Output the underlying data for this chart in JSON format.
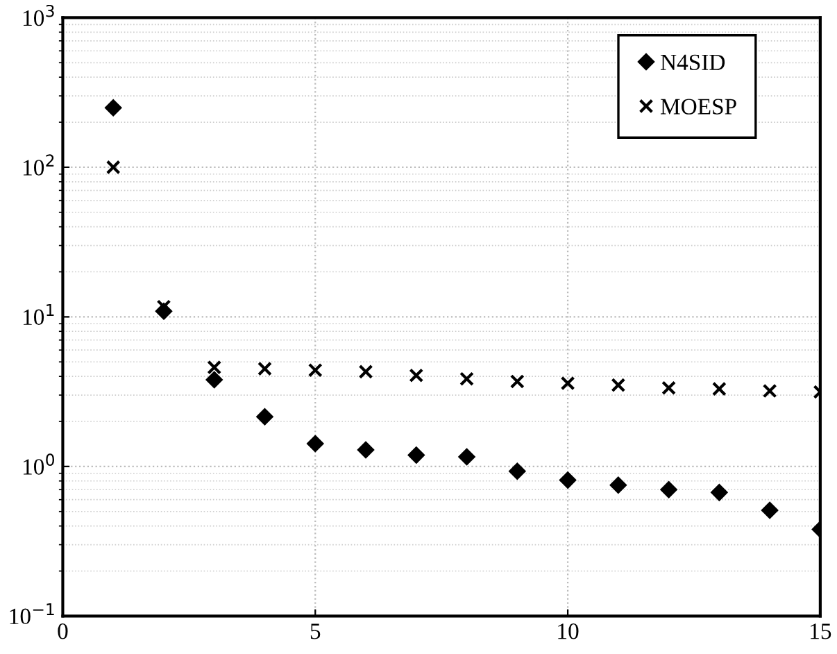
{
  "chart_data": {
    "type": "scatter",
    "log": "y",
    "grid": true,
    "legend": "top right",
    "xlim": [
      0,
      15
    ],
    "xticks": [
      0,
      5,
      10,
      15
    ],
    "ylim": [
      0.1,
      1000
    ],
    "yticks": [
      {
        "value": 0.1,
        "label": "10$^{−1}$"
      },
      {
        "value": 1,
        "label": "10$^{0}$"
      },
      {
        "value": 10,
        "label": "10$^{1}$"
      },
      {
        "value": 100,
        "label": "10$^{2}$"
      },
      {
        "value": 1000,
        "label": "10$^{3}$"
      }
    ],
    "x": [
      1,
      2,
      3,
      4,
      5,
      6,
      7,
      8,
      9,
      10,
      11,
      12,
      13,
      14,
      15
    ],
    "series": [
      {
        "name": "N4SID",
        "color": "#000000",
        "marker": "diamond",
        "values": [
          250,
          10.9,
          3.8,
          2.15,
          1.42,
          1.29,
          1.19,
          1.16,
          0.93,
          0.81,
          0.75,
          0.7,
          0.67,
          0.51,
          0.38
        ]
      },
      {
        "name": "MOESP",
        "color": "#000000",
        "marker": "cross",
        "values": [
          100,
          11.7,
          4.6,
          4.5,
          4.4,
          4.3,
          4.06,
          3.85,
          3.7,
          3.6,
          3.5,
          3.35,
          3.3,
          3.2,
          3.15
        ]
      }
    ]
  }
}
